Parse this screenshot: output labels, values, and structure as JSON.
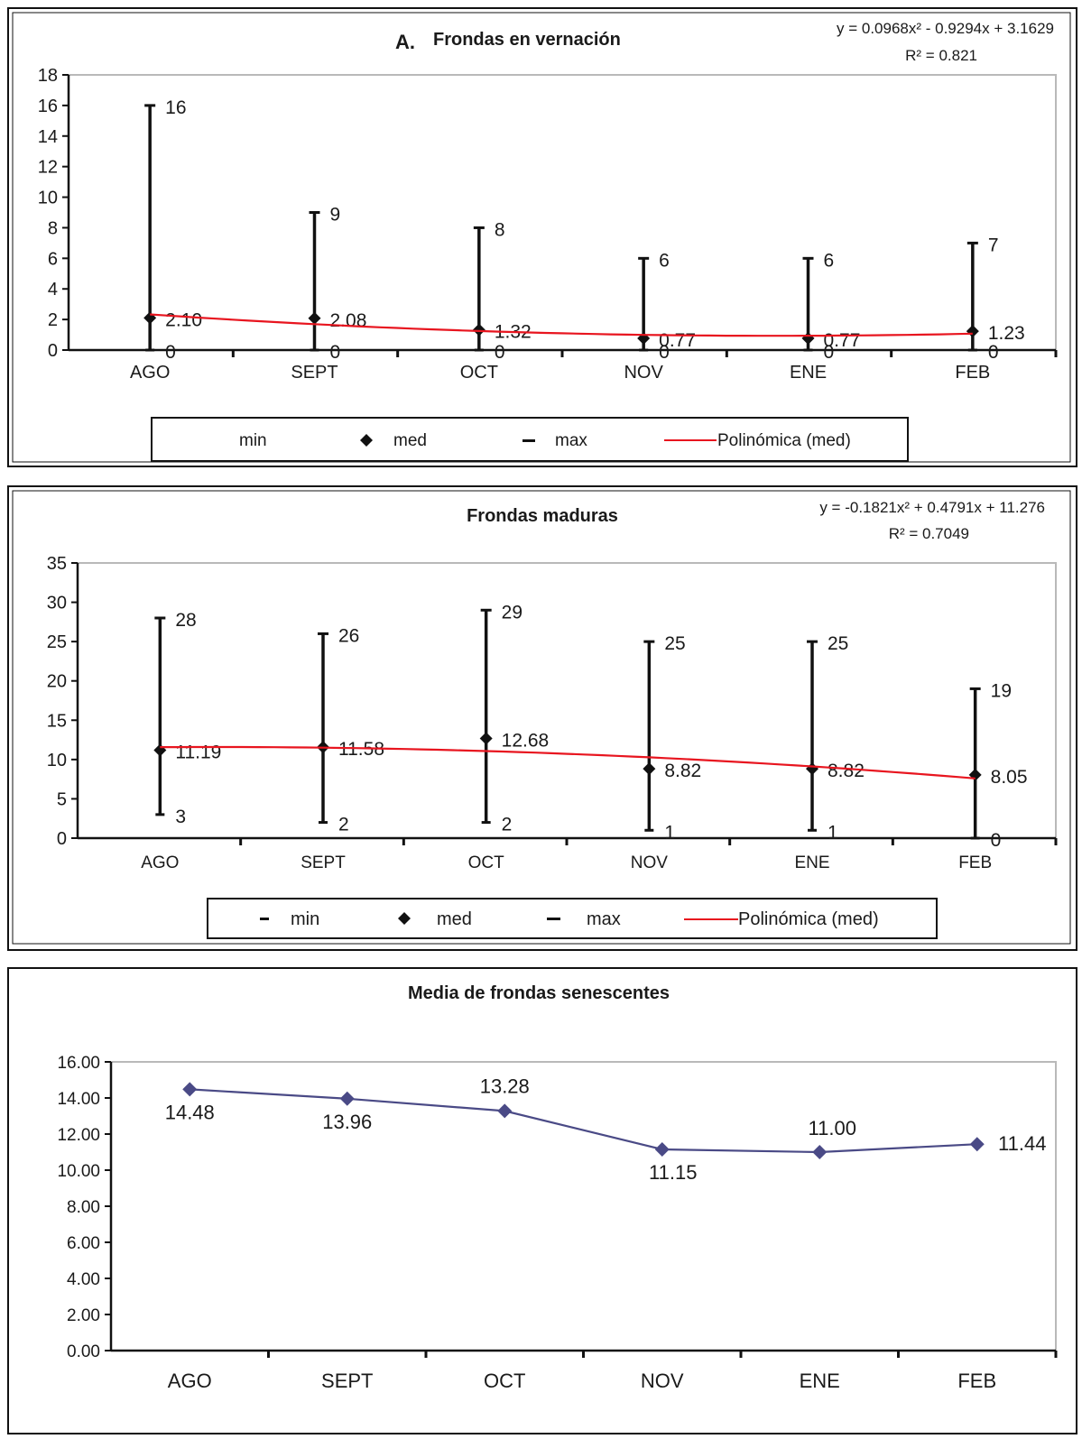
{
  "chart_data": [
    {
      "type": "line",
      "title": "Frondas en vernación",
      "panel_letter": "A.",
      "categories": [
        "AGO",
        "SEPT",
        "OCT",
        "NOV",
        "ENE",
        "FEB"
      ],
      "ylim": [
        0,
        18
      ],
      "yticks": [
        "0",
        "2",
        "4",
        "6",
        "8",
        "10",
        "12",
        "14",
        "16",
        "18"
      ],
      "equation": "y = 0.0968x² - 0.9294x + 3.1629",
      "r2": "R² = 0.821",
      "series": [
        {
          "name": "min",
          "values": [
            0,
            0,
            0,
            0,
            0,
            0
          ],
          "labels": [
            "0",
            "0",
            "0",
            "0",
            "0",
            "0"
          ]
        },
        {
          "name": "med",
          "values": [
            2.1,
            2.08,
            1.32,
            0.77,
            0.77,
            1.23
          ],
          "labels": [
            "2.10",
            "2.08",
            "1.32",
            "0.77",
            "0.77",
            "1.23"
          ]
        },
        {
          "name": "max",
          "values": [
            16,
            9,
            8,
            6,
            6,
            7
          ],
          "labels": [
            "16",
            "9",
            "8",
            "6",
            "6",
            "7"
          ]
        }
      ],
      "trend": {
        "name": "Polinómica (med)",
        "coefficients": [
          0.0968,
          -0.9294,
          3.1629
        ],
        "color": "#e8151f"
      },
      "legend": [
        "min",
        "med",
        "max",
        "Polinómica (med)"
      ],
      "legend_position": "bottom"
    },
    {
      "type": "line",
      "title": "Frondas maduras",
      "categories": [
        "AGO",
        "SEPT",
        "OCT",
        "NOV",
        "ENE",
        "FEB"
      ],
      "ylim": [
        0,
        35
      ],
      "yticks": [
        "0",
        "5",
        "10",
        "15",
        "20",
        "25",
        "30",
        "35"
      ],
      "equation": "y = -0.1821x² + 0.4791x + 11.276",
      "r2": "R² = 0.7049",
      "series": [
        {
          "name": "min",
          "values": [
            3,
            2,
            2,
            1,
            1,
            0
          ],
          "labels": [
            "3",
            "2",
            "2",
            "1",
            "1",
            "0"
          ]
        },
        {
          "name": "med",
          "values": [
            11.19,
            11.58,
            12.68,
            8.82,
            8.82,
            8.05
          ],
          "labels": [
            "11.19",
            "11.58",
            "12.68",
            "8.82",
            "8.82",
            "8.05"
          ]
        },
        {
          "name": "max",
          "values": [
            28,
            26,
            29,
            25,
            25,
            19
          ],
          "labels": [
            "28",
            "26",
            "29",
            "25",
            "25",
            "19"
          ]
        }
      ],
      "trend": {
        "name": "Polinómica (med)",
        "coefficients": [
          -0.1821,
          0.4791,
          11.276
        ],
        "color": "#e8151f"
      },
      "legend": [
        "min",
        "med",
        "max",
        "Polinómica (med)"
      ],
      "legend_position": "bottom"
    },
    {
      "type": "line",
      "title": "Media de frondas senescentes",
      "categories": [
        "AGO",
        "SEPT",
        "OCT",
        "NOV",
        "ENE",
        "FEB"
      ],
      "ylim": [
        0,
        16
      ],
      "yticks": [
        "0.00",
        "2.00",
        "4.00",
        "6.00",
        "8.00",
        "10.00",
        "12.00",
        "14.00",
        "16.00"
      ],
      "series": [
        {
          "values": [
            14.48,
            13.96,
            13.28,
            11.15,
            11.0,
            11.44
          ],
          "labels": [
            "14.48",
            "13.96",
            "13.28",
            "11.15",
            "11.00",
            "11.44"
          ],
          "color": "#4a4a86"
        }
      ]
    }
  ]
}
